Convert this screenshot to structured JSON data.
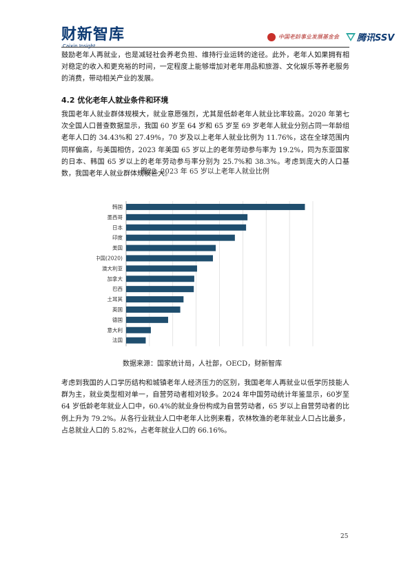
{
  "header": {
    "brand": "财新智库",
    "brand_sub": "Caixin Insight",
    "partner_org": "中国老龄事业发展基金会",
    "partner_brand": "腾讯SSV"
  },
  "body": {
    "paragraph_1": "鼓励老年人再就业，也是减轻社会养老负担、维持行业运转的途径。此外，老年人如果拥有相对稳定的收入和更充裕的时间，一定程度上能够增加对老年用品和旅游、文化娱乐等养老服务的消费，带动相关产业的发展。",
    "section_heading": "4.2  优化老年人就业条件和环境",
    "paragraph_2": "我国老年人就业群体规模大，就业意愿强烈，尤其是低龄老年人就业比率较高。2020 年第七次全国人口普查数据显示，我国 60 岁至 64 岁和 65 岁至 69 岁老年人就业分别占同一年龄组老年人口的 34.43%和 27.49%，70 岁及以上老年人就业比例为 11.76%，这在全球范围内同样偏高，与美国相仿，2023 年美国 65 岁以上的老年劳动参与率为 19.2%，同为东亚国家的日本、韩国 65 岁以上的老年劳动参与率分别为 25.7%和 38.3%。考虑到庞大的人口基数，我国老年人就业群体规模巨大。",
    "paragraph_3": "考虑到我国的人口学历结构和城镇老年人经济压力的区别，我国老年人再就业以低学历技能人群为主，就业类型相对单一，自营劳动者相对较多。2024 年中国劳动统计年鉴显示，60岁至 64 岁低龄老年就业人口中，60.4%的就业身份构成为自营劳动者，65 岁以上自营劳动者的比例上升为 79.2%。从各行业就业人口中老年人比例来看，农林牧渔的老年就业人口占比最多，占总就业人口的 5.82%，占老年就业人口的 66.16%。"
  },
  "figure": {
    "title": "图22. 2023 年 65 岁以上老年人就业比例",
    "source": "数据来源：国家统计局，人社部，OECD，财新智库"
  },
  "page_number": "25",
  "colors": {
    "bar": "#1f4e6e",
    "brand": "#0d3a73",
    "seal": "#c8312b"
  },
  "chart_data": {
    "type": "bar",
    "orientation": "horizontal",
    "categories": [
      "韩国",
      "墨西哥",
      "日本",
      "印度",
      "美国",
      "中国(2020)",
      "澳大利亚",
      "加拿大",
      "巴西",
      "土耳其",
      "英国",
      "德国",
      "意大利",
      "法国"
    ],
    "values": [
      38.3,
      26.0,
      25.7,
      23.3,
      19.2,
      18.6,
      15.2,
      14.6,
      14.5,
      12.3,
      11.6,
      9.0,
      5.3,
      4.2
    ],
    "xlim": [
      0,
      40
    ],
    "xticks": [
      "0%",
      "5%",
      "10%",
      "15%",
      "20%",
      "25%",
      "30%",
      "35%",
      "40%"
    ],
    "grid": true
  }
}
